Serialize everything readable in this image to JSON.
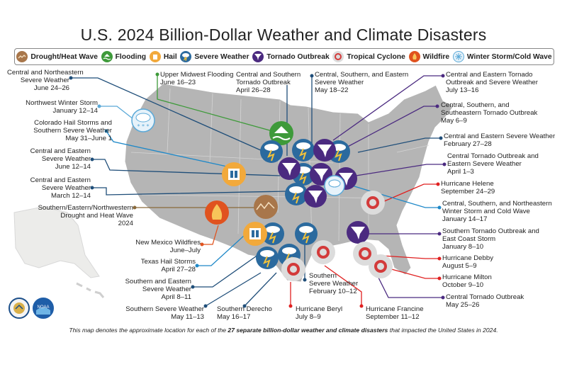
{
  "title": "U.S. 2024 Billion-Dollar Weather and Climate Disasters",
  "legend": [
    {
      "label": "Drought/Heat Wave",
      "icon": "drought-icon",
      "color": "#a8764a"
    },
    {
      "label": "Flooding",
      "icon": "flooding-icon",
      "color": "#3e9a3a"
    },
    {
      "label": "Hail",
      "icon": "hail-icon",
      "color": "#f2a93b"
    },
    {
      "label": "Severe Weather",
      "icon": "severe-weather-icon",
      "color": "#2b6a9e"
    },
    {
      "label": "Tornado Outbreak",
      "icon": "tornado-icon",
      "color": "#4b2a80"
    },
    {
      "label": "Tropical Cyclone",
      "icon": "tropical-cyclone-icon",
      "color": "#d33a3a"
    },
    {
      "label": "Wildfire",
      "icon": "wildfire-icon",
      "color": "#e0531f"
    },
    {
      "label": "Winter Storm/Cold Wave",
      "icon": "winter-storm-icon",
      "color": "#5aa9d8"
    }
  ],
  "labels": {
    "l1": {
      "line1": "Central and Northeastern",
      "line2": "Severe Weather",
      "line3": "June 24–26"
    },
    "l2": {
      "line1": "Upper Midwest Flooding",
      "line2": "June 16–23"
    },
    "l3": {
      "line1": "Central and Southern",
      "line2": "Tornado Outbreak",
      "line3": "April 26–28"
    },
    "l4": {
      "line1": "Central, Southern, and Eastern",
      "line2": "Severe Weather",
      "line3": "May 18–22"
    },
    "l5": {
      "line1": "Central and Eastern Tornado",
      "line2": "Outbreak and Severe Weather",
      "line3": "July 13–16"
    },
    "l6": {
      "line1": "Northwest Winter Storm",
      "line2": "January 12–14"
    },
    "l7": {
      "line1": "Central, Southern, and",
      "line2": "Southeastern Tornado Outbreak",
      "line3": "May 6–9"
    },
    "l8": {
      "line1": "Colorado Hail Storms and",
      "line2": "Southern Severe Weather",
      "line3": "May 31–June 1"
    },
    "l9": {
      "line1": "Central and Eastern Severe Weather",
      "line2": "February 27–28"
    },
    "l10": {
      "line1": "Central and Eastern",
      "line2": "Severe Weather",
      "line3": "June 12–14"
    },
    "l11": {
      "line1": "Central Tornado Outbreak and",
      "line2": "Eastern Severe Weather",
      "line3": "April 1–3"
    },
    "l12": {
      "line1": "Central and Eastern",
      "line2": "Severe Weather",
      "line3": "March 12–14"
    },
    "l13": {
      "line1": "Hurricane Helene",
      "line2": "September 24–29"
    },
    "l14": {
      "line1": "Southern/Eastern/Northwestern",
      "line2": "Drought and Heat Wave",
      "line3": "2024"
    },
    "l15": {
      "line1": "Central, Southern, and Northeastern",
      "line2": "Winter Storm and Cold Wave",
      "line3": "January 14–17"
    },
    "l16": {
      "line1": "Southern Tornado Outbreak and",
      "line2": "East Coast Storm",
      "line3": "January 8–10"
    },
    "l17": {
      "line1": "New Mexico Wildfires",
      "line2": "June–July"
    },
    "l18": {
      "line1": "Hurricane Debby",
      "line2": "August 5–9"
    },
    "l19": {
      "line1": "Texas Hail Storms",
      "line2": "April 27–28"
    },
    "l20": {
      "line1": "Hurricane Milton",
      "line2": "October 9–10"
    },
    "l21": {
      "line1": "Southern and Eastern",
      "line2": "Severe Weather",
      "line3": "April 8–11"
    },
    "l22": {
      "line1": "Southern",
      "line2": "Severe Weather",
      "line3": "February 10–12"
    },
    "l23": {
      "line1": "Central Tornado Outbreak",
      "line2": "May 25–26"
    },
    "l24": {
      "line1": "Southern Severe Weather",
      "line2": "May 11–13"
    },
    "l25": {
      "line1": "Southern Derecho",
      "line2": "May 16–17"
    },
    "l26": {
      "line1": "Hurricane Beryl",
      "line2": "July 8–9"
    },
    "l27": {
      "line1": "Hurricane Francine",
      "line2": "September 11–12"
    }
  },
  "note": {
    "before": "This map denotes the approximate location for each of the ",
    "bold": "27 separate billion-dollar weather and climate disasters",
    "after": " that impacted the United States in 2024."
  },
  "logos": {
    "doc": "doc-seal",
    "noaa": "NOAA"
  }
}
